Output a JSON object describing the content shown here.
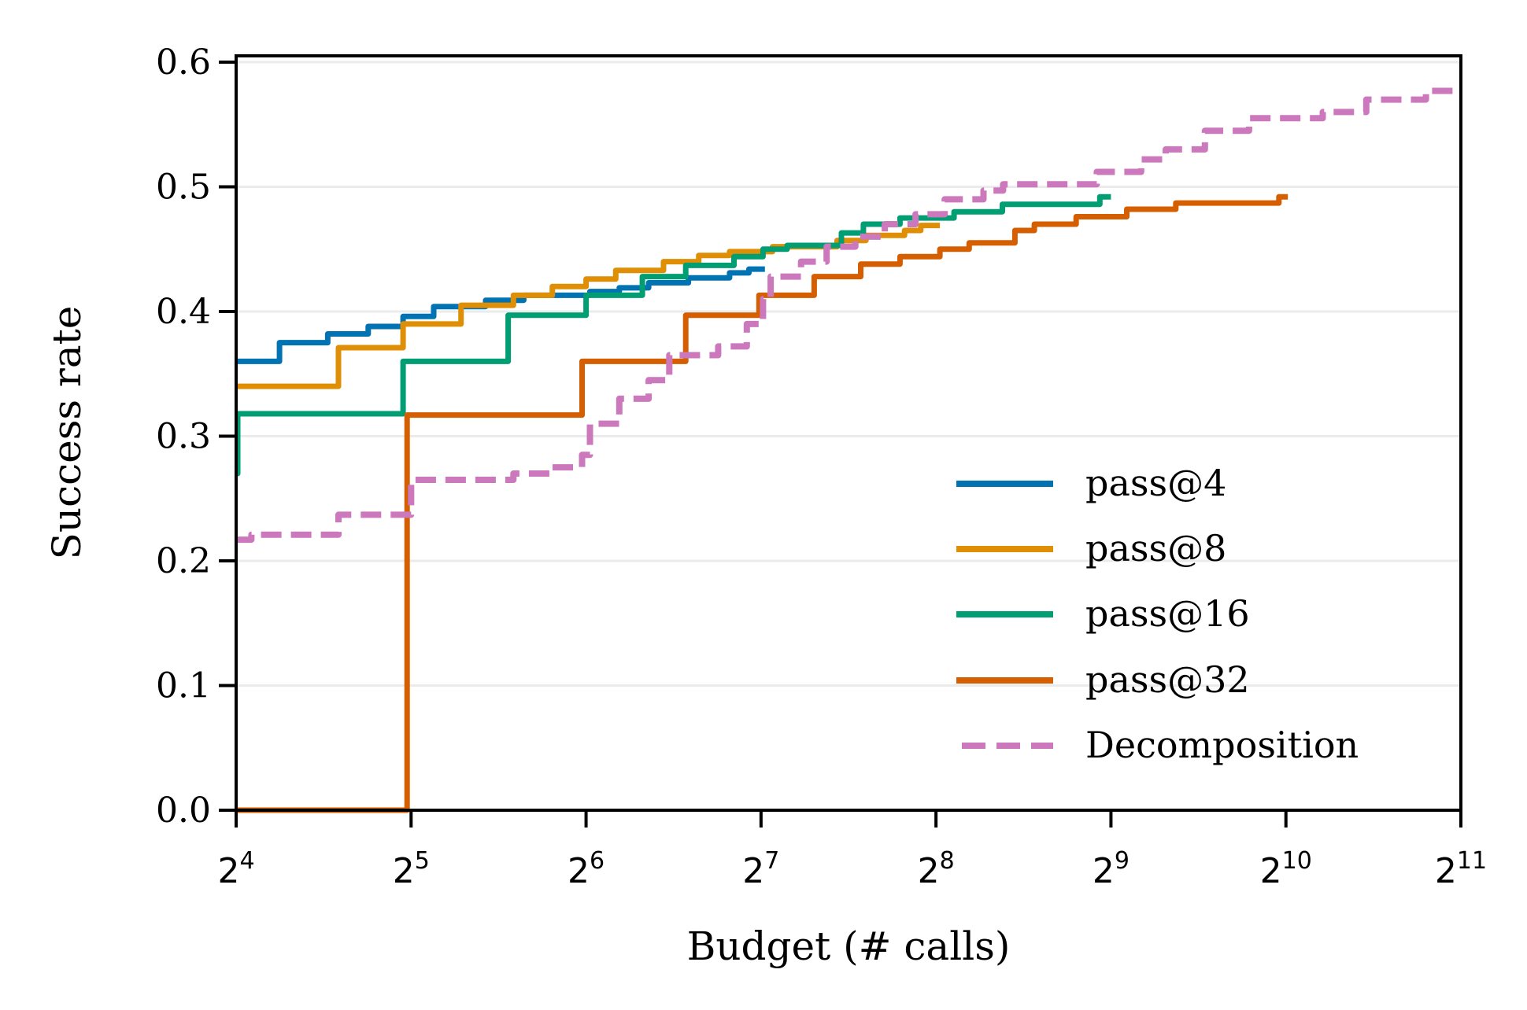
{
  "chart_data": {
    "type": "line",
    "title": "",
    "xlabel": "Budget (# calls)",
    "ylabel": "Success rate",
    "x_scale": "log2",
    "xlim": [
      16,
      2048
    ],
    "ylim": [
      0,
      0.6
    ],
    "x_ticks": [
      {
        "base": "2",
        "exp": "4",
        "value": 16
      },
      {
        "base": "2",
        "exp": "5",
        "value": 32
      },
      {
        "base": "2",
        "exp": "6",
        "value": 64
      },
      {
        "base": "2",
        "exp": "7",
        "value": 128
      },
      {
        "base": "2",
        "exp": "8",
        "value": 256
      },
      {
        "base": "2",
        "exp": "9",
        "value": 512
      },
      {
        "base": "2",
        "exp": "10",
        "value": 1024
      },
      {
        "base": "2",
        "exp": "11",
        "value": 2048
      }
    ],
    "y_ticks": [
      "0.0",
      "0.1",
      "0.2",
      "0.3",
      "0.4",
      "0.5",
      "0.6"
    ],
    "grid": "horizontal",
    "legend_position": "lower-right",
    "step": true,
    "series": [
      {
        "name": "pass@4",
        "color": "#0173b2",
        "style": "solid",
        "points": [
          [
            16,
            0.36
          ],
          [
            19,
            0.375
          ],
          [
            23,
            0.382
          ],
          [
            27,
            0.388
          ],
          [
            31,
            0.396
          ],
          [
            35,
            0.404
          ],
          [
            43,
            0.409
          ],
          [
            50,
            0.413
          ],
          [
            65,
            0.416
          ],
          [
            73,
            0.419
          ],
          [
            82,
            0.423
          ],
          [
            96,
            0.427
          ],
          [
            113,
            0.431
          ],
          [
            122,
            0.434
          ],
          [
            130,
            0.434
          ]
        ]
      },
      {
        "name": "pass@8",
        "color": "#de8f05",
        "style": "solid",
        "points": [
          [
            16,
            0.34
          ],
          [
            24,
            0.371
          ],
          [
            31,
            0.39
          ],
          [
            39,
            0.405
          ],
          [
            48,
            0.413
          ],
          [
            56,
            0.42
          ],
          [
            64,
            0.426
          ],
          [
            72,
            0.433
          ],
          [
            87,
            0.44
          ],
          [
            100,
            0.445
          ],
          [
            113,
            0.448
          ],
          [
            134,
            0.452
          ],
          [
            173,
            0.457
          ],
          [
            194,
            0.461
          ],
          [
            226,
            0.465
          ],
          [
            241,
            0.469
          ],
          [
            260,
            0.469
          ]
        ]
      },
      {
        "name": "pass@16",
        "color": "#029e73",
        "style": "solid",
        "points": [
          [
            16,
            0.27
          ],
          [
            16.1,
            0.318
          ],
          [
            31,
            0.36
          ],
          [
            47,
            0.397
          ],
          [
            64,
            0.413
          ],
          [
            80,
            0.428
          ],
          [
            95,
            0.437
          ],
          [
            115,
            0.444
          ],
          [
            129,
            0.45
          ],
          [
            142,
            0.453
          ],
          [
            176,
            0.463
          ],
          [
            192,
            0.47
          ],
          [
            222,
            0.475
          ],
          [
            275,
            0.48
          ],
          [
            333,
            0.486
          ],
          [
            490,
            0.492
          ],
          [
            512,
            0.492
          ]
        ]
      },
      {
        "name": "pass@32",
        "color": "#d55e00",
        "style": "solid",
        "points": [
          [
            16,
            0.0
          ],
          [
            31,
            0.0
          ],
          [
            31.5,
            0.317
          ],
          [
            63,
            0.36
          ],
          [
            95,
            0.397
          ],
          [
            127,
            0.413
          ],
          [
            158,
            0.428
          ],
          [
            190,
            0.438
          ],
          [
            222,
            0.444
          ],
          [
            260,
            0.45
          ],
          [
            292,
            0.455
          ],
          [
            350,
            0.465
          ],
          [
            378,
            0.47
          ],
          [
            446,
            0.476
          ],
          [
            545,
            0.482
          ],
          [
            662,
            0.487
          ],
          [
            996,
            0.492
          ],
          [
            1032,
            0.492
          ]
        ]
      },
      {
        "name": "Decomposition",
        "color": "#cc78bc",
        "style": "dashed",
        "points": [
          [
            16,
            0.217
          ],
          [
            17,
            0.221
          ],
          [
            24,
            0.237
          ],
          [
            32,
            0.265
          ],
          [
            48,
            0.27
          ],
          [
            56,
            0.275
          ],
          [
            63,
            0.285
          ],
          [
            65,
            0.31
          ],
          [
            73,
            0.33
          ],
          [
            82,
            0.345
          ],
          [
            89,
            0.365
          ],
          [
            108,
            0.372
          ],
          [
            121,
            0.39
          ],
          [
            129,
            0.41
          ],
          [
            133,
            0.428
          ],
          [
            150,
            0.44
          ],
          [
            166,
            0.452
          ],
          [
            186,
            0.46
          ],
          [
            209,
            0.47
          ],
          [
            236,
            0.478
          ],
          [
            265,
            0.49
          ],
          [
            309,
            0.497
          ],
          [
            334,
            0.502
          ],
          [
            484,
            0.512
          ],
          [
            577,
            0.522
          ],
          [
            636,
            0.53
          ],
          [
            743,
            0.545
          ],
          [
            885,
            0.555
          ],
          [
            1185,
            0.56
          ],
          [
            1408,
            0.57
          ],
          [
            1783,
            0.577
          ],
          [
            2048,
            0.577
          ]
        ]
      }
    ]
  }
}
